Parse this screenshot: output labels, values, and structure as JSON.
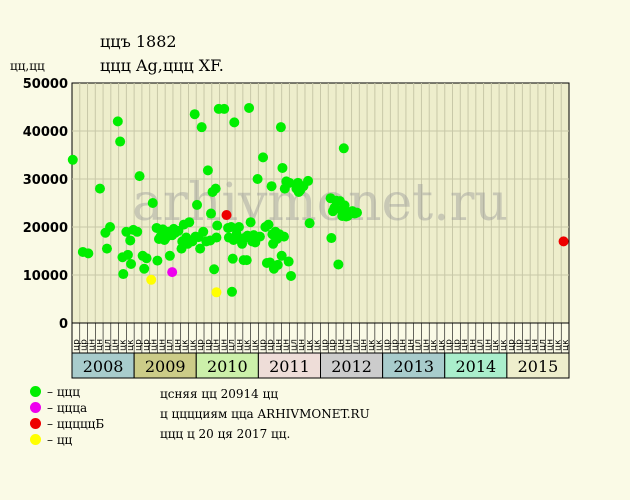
{
  "header": {
    "title": "ццъ 1882",
    "subtitle": "ццц Ag,ццц XF.",
    "unit": "цц,цц"
  },
  "watermark": "arhivmonet.ru",
  "legend": [
    {
      "label": "– ццц",
      "color": "#00ee00"
    },
    {
      "label": "– ццца",
      "color": "#ee00ee"
    },
    {
      "label": "– цццццБ",
      "color": "#ee0000"
    },
    {
      "label": "– цц",
      "color": "#ffff00"
    }
  ],
  "notes": [
    "цсняя цц 20914 цц",
    "ц цццциям цца ARHIVMONET.RU",
    "ццц ц 20 ця 2017 цц."
  ],
  "chart_data": {
    "type": "scatter",
    "ylim": [
      0,
      50000
    ],
    "yticks": [
      "0",
      "10000",
      "20000",
      "30000",
      "40000",
      "50000"
    ],
    "grid": true,
    "months": [
      "цр",
      "цр",
      "цн",
      "цн",
      "цл",
      "цн",
      "цк",
      "цк",
      "цр",
      "цр",
      "цн",
      "цн",
      "цл",
      "цн",
      "цк",
      "цк",
      "цр",
      "цр",
      "цн",
      "цн",
      "цл",
      "цн",
      "цк",
      "цк",
      "цр",
      "цр",
      "цн",
      "цн",
      "цл",
      "цн",
      "цк",
      "цк",
      "цр",
      "цр",
      "цн",
      "цн",
      "цл",
      "цн",
      "цк",
      "цк",
      "цр",
      "цр",
      "цн",
      "цн",
      "цл",
      "цн",
      "цк",
      "цк",
      "цр",
      "цр",
      "цн",
      "цн",
      "цл",
      "цн",
      "цк",
      "цк",
      "цр",
      "цр",
      "цн",
      "цн",
      "цл",
      "цн",
      "цк",
      "цк"
    ],
    "years": [
      {
        "label": "2008",
        "color": "#a8cccc"
      },
      {
        "label": "2009",
        "color": "#cccc88"
      },
      {
        "label": "2010",
        "color": "#ccf0aa"
      },
      {
        "label": "2011",
        "color": "#eeddd8"
      },
      {
        "label": "2012",
        "color": "#cccccc"
      },
      {
        "label": "2013",
        "color": "#a8cccc"
      },
      {
        "label": "2014",
        "color": "#aaeecc"
      },
      {
        "label": "2015",
        "color": "#eeeecc"
      }
    ],
    "series": [
      {
        "color": "#00ee00",
        "points": [
          [
            0.1,
            34000
          ],
          [
            1.4,
            14800
          ],
          [
            2.1,
            14500
          ],
          [
            3.6,
            28000
          ],
          [
            4.3,
            18800
          ],
          [
            4.5,
            15500
          ],
          [
            4.9,
            20000
          ],
          [
            5.9,
            42000
          ],
          [
            6.2,
            37800
          ],
          [
            6.5,
            13700
          ],
          [
            6.6,
            10200
          ],
          [
            7.0,
            19000
          ],
          [
            7.2,
            14200
          ],
          [
            7.5,
            17200
          ],
          [
            7.6,
            12300
          ],
          [
            7.9,
            19400
          ],
          [
            8.4,
            19000
          ],
          [
            8.7,
            30600
          ],
          [
            9.1,
            14000
          ],
          [
            9.3,
            11300
          ],
          [
            9.6,
            13500
          ],
          [
            10.4,
            25000
          ],
          [
            10.9,
            19800
          ],
          [
            11.0,
            13000
          ],
          [
            11.2,
            17500
          ],
          [
            11.4,
            18000
          ],
          [
            11.5,
            17800
          ],
          [
            11.7,
            19500
          ],
          [
            11.9,
            17300
          ],
          [
            12.1,
            17800
          ],
          [
            12.4,
            19000
          ],
          [
            12.6,
            14000
          ],
          [
            12.9,
            18300
          ],
          [
            13.1,
            19600
          ],
          [
            13.3,
            18800
          ],
          [
            13.7,
            19200
          ],
          [
            14.1,
            15500
          ],
          [
            14.2,
            17000
          ],
          [
            14.4,
            20500
          ],
          [
            14.7,
            17800
          ],
          [
            14.9,
            16500
          ],
          [
            15.1,
            21000
          ],
          [
            15.4,
            17200
          ],
          [
            15.5,
            17000
          ],
          [
            15.8,
            43500
          ],
          [
            15.9,
            18000
          ],
          [
            16.1,
            24600
          ],
          [
            16.3,
            17900
          ],
          [
            16.5,
            15500
          ],
          [
            16.7,
            40800
          ],
          [
            16.9,
            19000
          ],
          [
            17.3,
            17000
          ],
          [
            17.5,
            31800
          ],
          [
            17.8,
            17200
          ],
          [
            17.9,
            22800
          ],
          [
            18.1,
            27300
          ],
          [
            18.3,
            11200
          ],
          [
            18.5,
            28000
          ],
          [
            18.6,
            17800
          ],
          [
            18.7,
            20300
          ],
          [
            18.9,
            44600
          ],
          [
            19.6,
            44600
          ],
          [
            20.1,
            19800
          ],
          [
            20.2,
            17800
          ],
          [
            20.5,
            20000
          ],
          [
            20.6,
            6500
          ],
          [
            20.7,
            13400
          ],
          [
            20.8,
            17300
          ],
          [
            20.9,
            41800
          ],
          [
            21.2,
            18500
          ],
          [
            21.3,
            17800
          ],
          [
            21.5,
            20000
          ],
          [
            21.9,
            16500
          ],
          [
            22.1,
            13100
          ],
          [
            22.2,
            17700
          ],
          [
            22.5,
            13100
          ],
          [
            22.6,
            18200
          ],
          [
            22.8,
            44800
          ],
          [
            23.0,
            21000
          ],
          [
            23.2,
            17000
          ],
          [
            23.4,
            18300
          ],
          [
            23.6,
            16800
          ],
          [
            23.9,
            30000
          ],
          [
            24.2,
            18000
          ],
          [
            24.6,
            34500
          ],
          [
            24.9,
            20000
          ],
          [
            25.1,
            12500
          ],
          [
            25.3,
            20500
          ],
          [
            25.5,
            12600
          ],
          [
            25.7,
            28500
          ],
          [
            25.8,
            18500
          ],
          [
            25.9,
            16500
          ],
          [
            26.0,
            11300
          ],
          [
            26.2,
            19000
          ],
          [
            26.4,
            17500
          ],
          [
            26.5,
            12100
          ],
          [
            26.7,
            18500
          ],
          [
            26.9,
            40800
          ],
          [
            27.0,
            14000
          ],
          [
            27.1,
            32300
          ],
          [
            27.3,
            18000
          ],
          [
            27.4,
            28000
          ],
          [
            27.6,
            29500
          ],
          [
            27.9,
            12800
          ],
          [
            28.0,
            29200
          ],
          [
            28.2,
            9800
          ],
          [
            28.9,
            28000
          ],
          [
            29.1,
            29200
          ],
          [
            29.2,
            27300
          ],
          [
            29.4,
            27700
          ],
          [
            29.8,
            28500
          ],
          [
            30.4,
            29600
          ],
          [
            30.6,
            20800
          ],
          [
            33.3,
            26000
          ],
          [
            33.4,
            17700
          ],
          [
            33.6,
            23300
          ],
          [
            33.8,
            24000
          ],
          [
            34.0,
            25500
          ],
          [
            34.3,
            12200
          ],
          [
            34.5,
            25400
          ],
          [
            34.7,
            23500
          ],
          [
            34.8,
            22300
          ],
          [
            35.0,
            36400
          ],
          [
            35.1,
            24500
          ],
          [
            35.3,
            22200
          ],
          [
            35.5,
            22300
          ],
          [
            35.8,
            23000
          ],
          [
            36.1,
            23300
          ],
          [
            36.4,
            22800
          ],
          [
            36.7,
            23000
          ]
        ]
      },
      {
        "color": "#ee00ee",
        "points": [
          [
            12.9,
            10600
          ]
        ]
      },
      {
        "color": "#ee0000",
        "points": [
          [
            19.9,
            22500
          ],
          [
            63.3,
            17000
          ]
        ]
      },
      {
        "color": "#ffff00",
        "points": [
          [
            10.2,
            9000
          ],
          [
            18.6,
            6400
          ]
        ]
      }
    ]
  }
}
